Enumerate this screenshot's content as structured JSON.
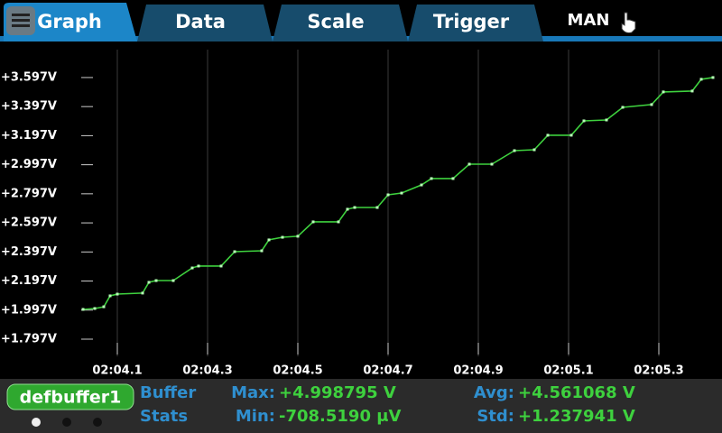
{
  "tabs": [
    "Graph",
    "Data",
    "Scale",
    "Trigger"
  ],
  "mode": "MAN",
  "buffer": {
    "name": "defbuffer1"
  },
  "stats": {
    "title": [
      "Buffer",
      "Stats"
    ],
    "items": [
      {
        "label": "Max:",
        "value": "+4.998795 V"
      },
      {
        "label": "Avg:",
        "value": "+4.561068 V"
      },
      {
        "label": "Min:",
        "value": "-708.5190 μV"
      },
      {
        "label": "Std:",
        "value": "+1.237941 V"
      }
    ]
  },
  "chart_data": {
    "type": "line",
    "color": "#3ed13e",
    "grid": true,
    "x": [
      124.024,
      124.05,
      124.07,
      124.084,
      124.1,
      124.156,
      124.17,
      124.186,
      124.224,
      124.266,
      124.28,
      124.33,
      124.36,
      124.42,
      124.436,
      124.466,
      124.5,
      124.534,
      124.59,
      124.61,
      124.626,
      124.676,
      124.7,
      124.73,
      124.774,
      124.796,
      124.844,
      124.88,
      124.93,
      124.98,
      125.024,
      125.054,
      125.106,
      125.134,
      125.184,
      125.22,
      125.284,
      125.31,
      125.374,
      125.394,
      125.42
    ],
    "values": [
      2.002,
      2.008,
      2.02,
      2.095,
      2.107,
      2.114,
      2.188,
      2.2,
      2.2,
      2.287,
      2.3,
      2.3,
      2.399,
      2.405,
      2.48,
      2.498,
      2.505,
      2.604,
      2.604,
      2.691,
      2.703,
      2.703,
      2.79,
      2.802,
      2.858,
      2.902,
      2.902,
      3.001,
      3.001,
      3.094,
      3.1,
      3.2,
      3.2,
      3.299,
      3.305,
      3.392,
      3.411,
      3.498,
      3.504,
      3.585,
      3.597
    ],
    "xlim": [
      124.016,
      125.424
    ],
    "ylim": [
      1.679,
      3.789
    ],
    "xticks": [
      {
        "value": 124.1,
        "label": "02:04.1"
      },
      {
        "value": 124.3,
        "label": "02:04.3"
      },
      {
        "value": 124.5,
        "label": "02:04.5"
      },
      {
        "value": 124.7,
        "label": "02:04.7"
      },
      {
        "value": 124.9,
        "label": "02:04.9"
      },
      {
        "value": 125.1,
        "label": "02:05.1"
      },
      {
        "value": 125.3,
        "label": "02:05.3"
      }
    ],
    "yticks": [
      {
        "value": 1.797,
        "label": "+1.797V"
      },
      {
        "value": 1.997,
        "label": "+1.997V"
      },
      {
        "value": 2.197,
        "label": "+2.197V"
      },
      {
        "value": 2.397,
        "label": "+2.397V"
      },
      {
        "value": 2.597,
        "label": "+2.597V"
      },
      {
        "value": 2.797,
        "label": "+2.797V"
      },
      {
        "value": 2.997,
        "label": "+2.997V"
      },
      {
        "value": 3.197,
        "label": "+3.197V"
      },
      {
        "value": 3.397,
        "label": "+3.397V"
      },
      {
        "value": 3.597,
        "label": "+3.597V"
      }
    ]
  }
}
